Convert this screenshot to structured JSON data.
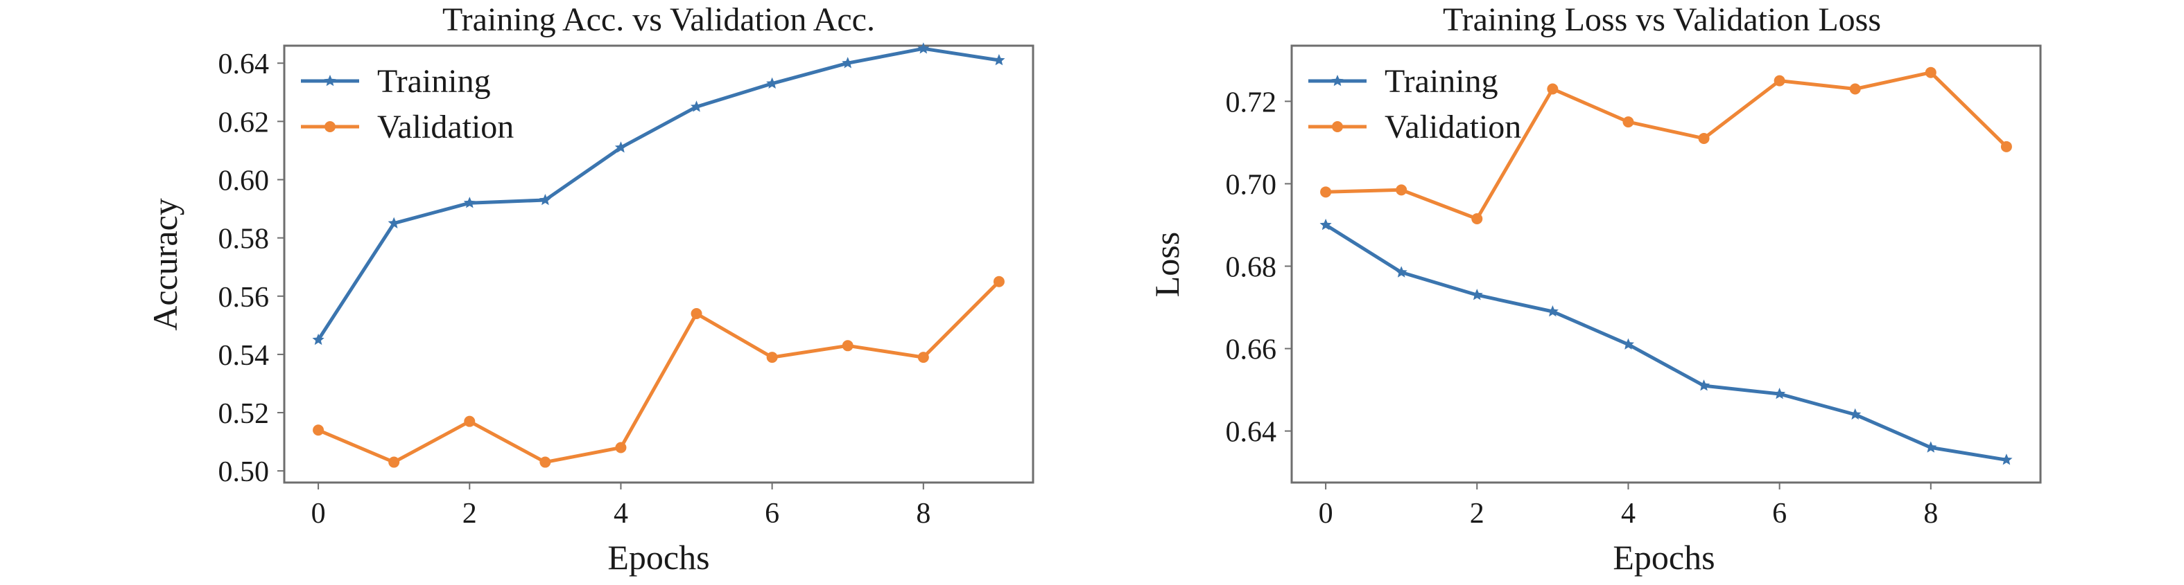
{
  "chart_data": [
    {
      "type": "line",
      "title": "Training Acc. vs Validation Acc.",
      "xlabel": "Epochs",
      "ylabel": "Accuracy",
      "xlim": [
        -0.45,
        9.45
      ],
      "ylim": [
        0.496,
        0.646
      ],
      "xticks": [
        0,
        2,
        4,
        6,
        8
      ],
      "yticks": [
        0.5,
        0.52,
        0.54,
        0.56,
        0.58,
        0.6,
        0.62,
        0.64
      ],
      "grid": false,
      "legend_position": "top-left",
      "x": [
        0,
        1,
        2,
        3,
        4,
        5,
        6,
        7,
        8,
        9
      ],
      "series": [
        {
          "name": "Training",
          "color": "#3b75af",
          "marker": "star",
          "values": [
            0.545,
            0.585,
            0.592,
            0.593,
            0.611,
            0.625,
            0.633,
            0.64,
            0.645,
            0.641
          ]
        },
        {
          "name": "Validation",
          "color": "#ef8636",
          "marker": "circle",
          "values": [
            0.514,
            0.503,
            0.517,
            0.503,
            0.508,
            0.554,
            0.539,
            0.543,
            0.539,
            0.565
          ]
        }
      ]
    },
    {
      "type": "line",
      "title": "Training Loss vs Validation Loss",
      "xlabel": "Epochs",
      "ylabel": "Loss",
      "xlim": [
        -0.45,
        9.45
      ],
      "ylim": [
        0.6275,
        0.7335
      ],
      "xticks": [
        0,
        2,
        4,
        6,
        8
      ],
      "yticks": [
        0.64,
        0.66,
        0.68,
        0.7,
        0.72
      ],
      "grid": false,
      "legend_position": "top-left",
      "x": [
        0,
        1,
        2,
        3,
        4,
        5,
        6,
        7,
        8,
        9
      ],
      "series": [
        {
          "name": "Training",
          "color": "#3b75af",
          "marker": "star",
          "values": [
            0.69,
            0.6785,
            0.673,
            0.669,
            0.661,
            0.651,
            0.649,
            0.644,
            0.636,
            0.633
          ]
        },
        {
          "name": "Validation",
          "color": "#ef8636",
          "marker": "circle",
          "values": [
            0.698,
            0.6985,
            0.6915,
            0.723,
            0.715,
            0.711,
            0.725,
            0.723,
            0.727,
            0.709
          ]
        }
      ]
    }
  ]
}
